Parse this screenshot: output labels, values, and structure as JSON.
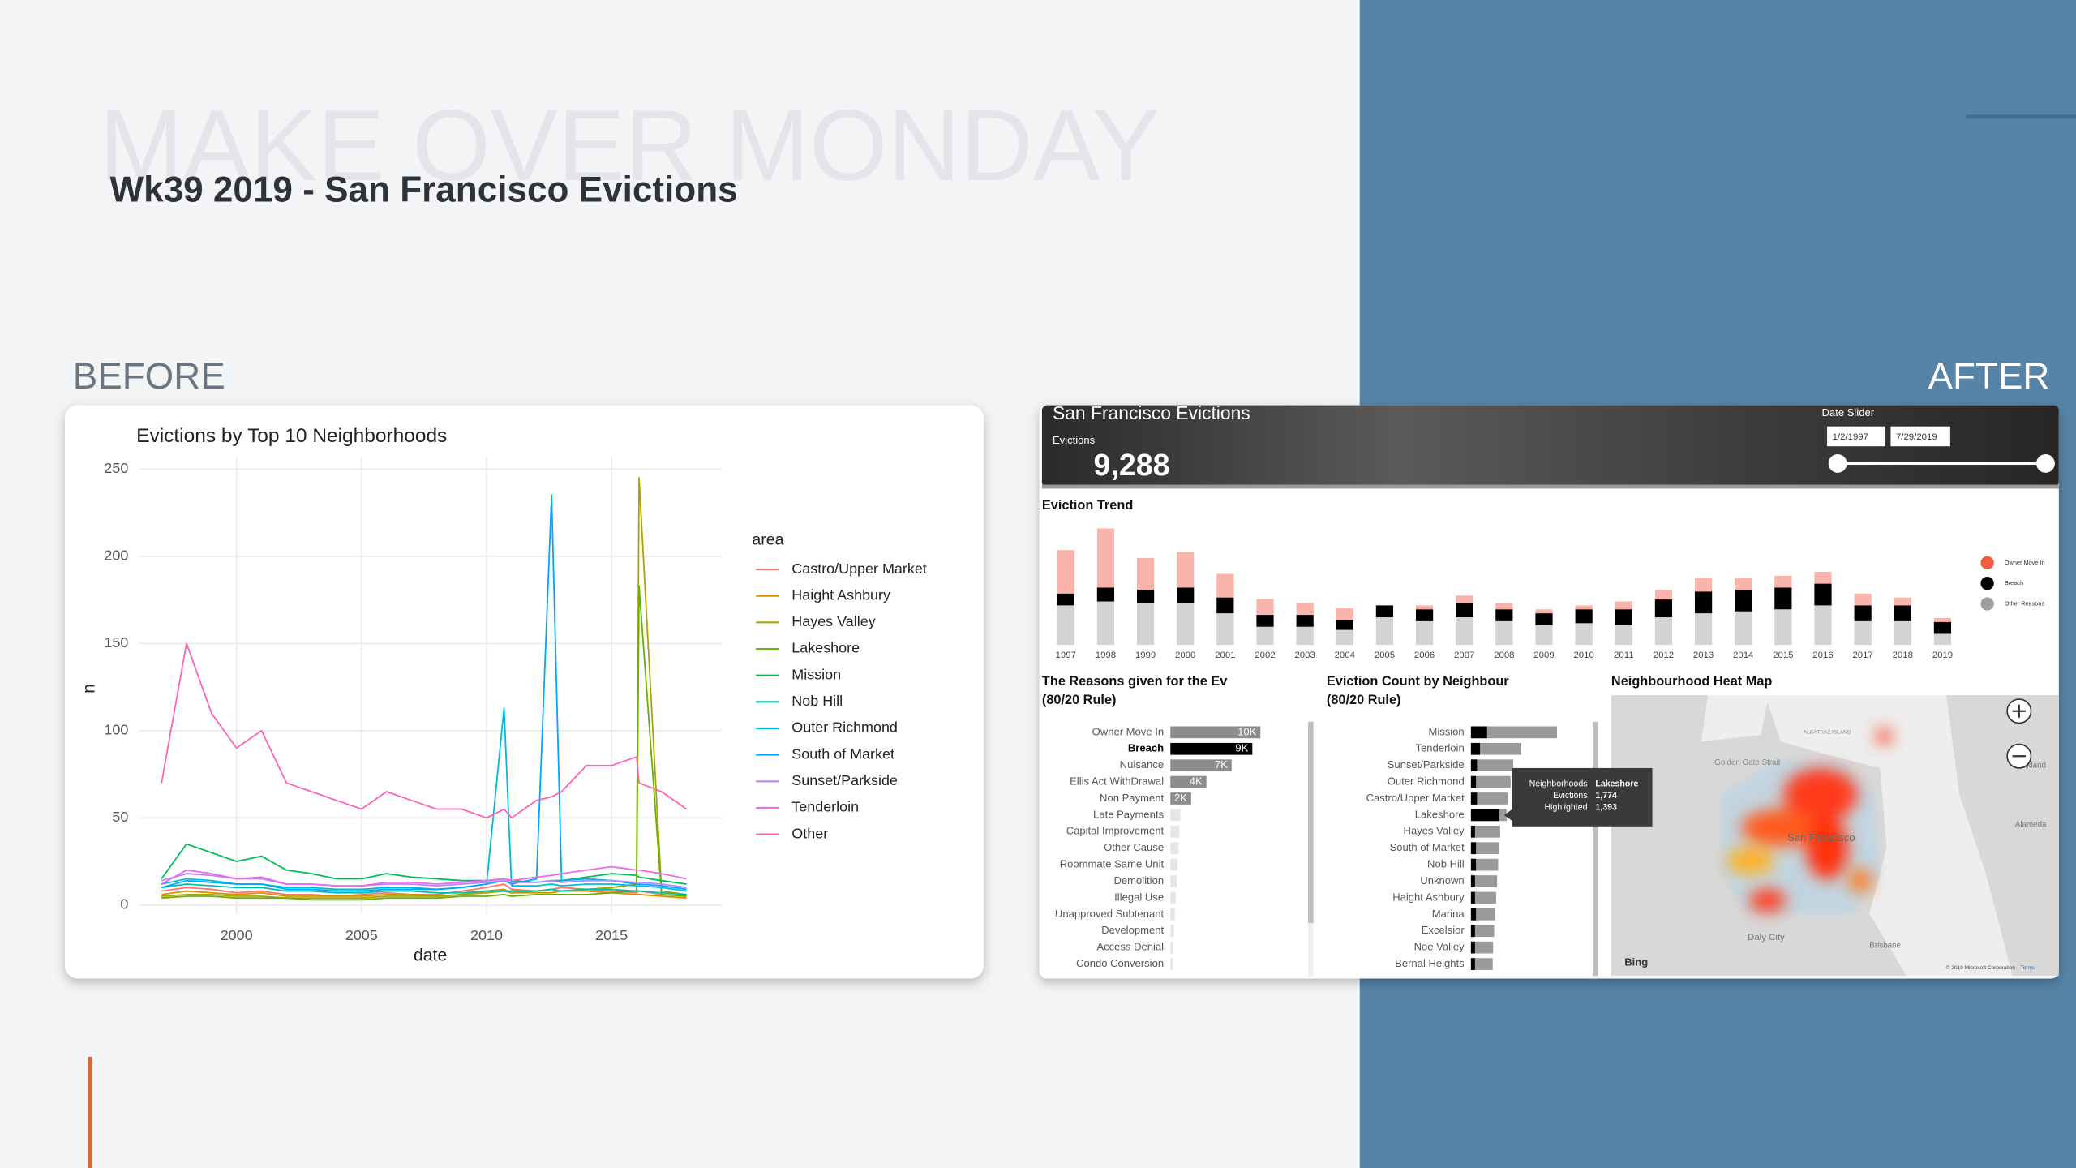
{
  "slide": {
    "watermark": "MAKE OVER MONDAY",
    "title": "Wk39 2019 - San Francisco Evictions",
    "before": "BEFORE",
    "after": "AFTER"
  },
  "dashboard": {
    "title": "San Francisco Evictions",
    "kpi_label": "Evictions",
    "kpi_value": "9,288",
    "slider_label": "Date Slider",
    "date_start": "1/2/1997",
    "date_end": "7/29/2019"
  },
  "map": {
    "title": "Neighbourhood Heat Map",
    "labels": [
      "San Francisco",
      "Daly City",
      "Brisbane",
      "Alameda",
      "Oakland",
      "Golden Gate Strait",
      "ALCATRAZ ISLAND"
    ],
    "provider": "Bing",
    "copyright": "© 2019 Microsoft Corporation",
    "terms": "Terms"
  },
  "chart_data": [
    {
      "type": "line",
      "title": "Evictions by Top 10 Neighborhoods",
      "x_label": "date",
      "y_label": "n",
      "legend_title": "area",
      "legend": "right",
      "grid": true,
      "x": [
        1997,
        1998,
        1999,
        2000,
        2001,
        2002,
        2003,
        2004,
        2005,
        2006,
        2007,
        2008,
        2009,
        2010,
        2010.7,
        2011,
        2012,
        2012.6,
        2013,
        2014,
        2015,
        2016,
        2016.1,
        2017,
        2018
      ],
      "xlim": [
        1996.1,
        2019.4
      ],
      "xticks": [
        2000,
        2005,
        2010,
        2015
      ],
      "ylim": [
        -5,
        257
      ],
      "yticks": [
        0,
        50,
        100,
        150,
        200,
        250
      ],
      "series": [
        {
          "name": "Castro/Upper Market",
          "color": "#F8766D",
          "values": [
            8,
            10,
            9,
            7,
            8,
            6,
            6,
            5,
            6,
            7,
            6,
            6,
            8,
            10,
            12,
            9,
            8,
            9,
            10,
            9,
            8,
            7,
            8,
            6,
            5
          ]
        },
        {
          "name": "Haight Ashbury",
          "color": "#DB8E00",
          "values": [
            6,
            8,
            7,
            6,
            7,
            5,
            5,
            5,
            5,
            6,
            6,
            5,
            6,
            8,
            9,
            7,
            7,
            7,
            8,
            8,
            7,
            6,
            6,
            5,
            4
          ]
        },
        {
          "name": "Hayes Valley",
          "color": "#AEA200",
          "values": [
            5,
            6,
            6,
            5,
            5,
            4,
            4,
            4,
            4,
            5,
            5,
            5,
            6,
            7,
            8,
            7,
            8,
            9,
            8,
            9,
            10,
            12,
            245,
            8,
            6
          ]
        },
        {
          "name": "Lakeshore",
          "color": "#64B200",
          "values": [
            4,
            5,
            5,
            4,
            4,
            4,
            3,
            3,
            3,
            4,
            4,
            4,
            5,
            5,
            6,
            5,
            6,
            6,
            6,
            6,
            7,
            8,
            183,
            6,
            5
          ]
        },
        {
          "name": "Mission",
          "color": "#00BD5C",
          "values": [
            15,
            35,
            30,
            25,
            28,
            20,
            18,
            15,
            15,
            18,
            16,
            15,
            14,
            14,
            15,
            14,
            13,
            14,
            14,
            16,
            18,
            17,
            16,
            14,
            12
          ]
        },
        {
          "name": "Nob Hill",
          "color": "#00C1A7",
          "values": [
            10,
            12,
            11,
            10,
            10,
            8,
            8,
            7,
            7,
            8,
            8,
            7,
            7,
            8,
            8,
            8,
            8,
            9,
            8,
            9,
            9,
            8,
            8,
            7,
            6
          ]
        },
        {
          "name": "Outer Richmond",
          "color": "#00BADE",
          "values": [
            12,
            15,
            14,
            12,
            12,
            10,
            10,
            9,
            9,
            10,
            10,
            9,
            10,
            12,
            113,
            11,
            11,
            12,
            11,
            12,
            12,
            11,
            11,
            10,
            8
          ]
        },
        {
          "name": "South of Market",
          "color": "#00A6FF",
          "values": [
            10,
            14,
            13,
            12,
            12,
            9,
            9,
            8,
            8,
            9,
            9,
            9,
            10,
            12,
            14,
            12,
            15,
            235,
            14,
            15,
            14,
            12,
            12,
            11,
            9
          ]
        },
        {
          "name": "Sunset/Parkside",
          "color": "#B385FF",
          "values": [
            14,
            18,
            17,
            15,
            15,
            12,
            12,
            11,
            11,
            12,
            12,
            11,
            12,
            13,
            14,
            13,
            13,
            14,
            13,
            14,
            14,
            13,
            13,
            12,
            10
          ]
        },
        {
          "name": "Tenderloin",
          "color": "#EF67EB",
          "values": [
            12,
            20,
            18,
            15,
            16,
            12,
            12,
            11,
            11,
            13,
            13,
            12,
            13,
            14,
            15,
            14,
            16,
            17,
            18,
            20,
            22,
            20,
            20,
            18,
            15
          ]
        },
        {
          "name": "Other",
          "color": "#FF63B6",
          "values": [
            70,
            150,
            110,
            90,
            100,
            70,
            65,
            60,
            55,
            65,
            60,
            55,
            55,
            50,
            55,
            50,
            60,
            62,
            65,
            80,
            80,
            85,
            70,
            65,
            55
          ]
        }
      ]
    },
    {
      "type": "bar",
      "stacked": true,
      "title": "Eviction Trend",
      "legend": "right",
      "highlighted": "Breach",
      "categories": [
        "1997",
        "1998",
        "1999",
        "2000",
        "2001",
        "2002",
        "2003",
        "2004",
        "2005",
        "2006",
        "2007",
        "2008",
        "2009",
        "2010",
        "2011",
        "2012",
        "2013",
        "2014",
        "2015",
        "2016",
        "2017",
        "2018",
        "2019"
      ],
      "series": [
        {
          "name": "Other Reasons",
          "color": "#9e9e9e",
          "values": [
            1000,
            1100,
            1050,
            1050,
            800,
            460,
            460,
            380,
            700,
            600,
            700,
            600,
            500,
            550,
            500,
            700,
            800,
            850,
            900,
            1000,
            600,
            600,
            280
          ]
        },
        {
          "name": "Breach",
          "color": "#000000",
          "values": [
            300,
            350,
            350,
            400,
            400,
            300,
            300,
            250,
            300,
            300,
            350,
            300,
            300,
            350,
            400,
            450,
            550,
            550,
            550,
            550,
            400,
            400,
            300
          ]
        },
        {
          "name": "Owner Move In",
          "color": "#f25c45",
          "values": [
            1100,
            1500,
            800,
            900,
            600,
            400,
            300,
            300,
            0,
            100,
            200,
            150,
            100,
            100,
            200,
            250,
            350,
            300,
            300,
            300,
            300,
            200,
            100
          ]
        }
      ]
    },
    {
      "type": "hbar",
      "title": "The Reasons given for the Ev",
      "subtitle": "(80/20 Rule)",
      "highlighted": "Breach",
      "categories": [
        "Owner Move In",
        "Breach",
        "Nuisance",
        "Ellis Act WithDrawal",
        "Non Payment",
        "Late Payments",
        "Capital Improvement",
        "Other Cause",
        "Roommate Same Unit",
        "Demolition",
        "Illegal Use",
        "Unapproved Subtenant",
        "Development",
        "Access Denial",
        "Condo Conversion"
      ],
      "values": [
        10000,
        9100,
        6800,
        4000,
        2300,
        1100,
        1000,
        900,
        800,
        700,
        600,
        500,
        400,
        300,
        250
      ],
      "value_labels": [
        "10K",
        "9K",
        "7K",
        "4K",
        "2K",
        null,
        null,
        null,
        null,
        null,
        null,
        null,
        null,
        null,
        null
      ],
      "colors": [
        "#8c8c8c",
        "#000000",
        "#8c8c8c",
        "#8c8c8c",
        "#8c8c8c",
        "#e6e6e6",
        "#e6e6e6",
        "#e6e6e6",
        "#e6e6e6",
        "#e6e6e6",
        "#e6e6e6",
        "#e6e6e6",
        "#e6e6e6",
        "#e6e6e6",
        "#e6e6e6"
      ]
    },
    {
      "type": "hbar_overlay",
      "title": "Eviction Count by Neighbour",
      "subtitle": "(80/20 Rule)",
      "tooltip_label": "Neighborhoods",
      "tooltip_index": 5,
      "categories": [
        "Mission",
        "Tenderloin",
        "Sunset/Parkside",
        "Outer Richmond",
        "Castro/Upper Market",
        "Lakeshore",
        "Hayes Valley",
        "South of Market",
        "Nob Hill",
        "Unknown",
        "Haight Ashbury",
        "Marina",
        "Excelsior",
        "Noe Valley",
        "Bernal Heights"
      ],
      "series": [
        {
          "name": "Evictions",
          "color": "#9a9a9a",
          "values": [
            4270,
            2500,
            2100,
            1970,
            1840,
            1774,
            1450,
            1380,
            1350,
            1300,
            1250,
            1200,
            1150,
            1100,
            1080
          ],
          "value_labels": [
            null,
            null,
            null,
            null,
            null,
            "1,774",
            null,
            null,
            null,
            null,
            null,
            null,
            null,
            null,
            null
          ]
        },
        {
          "name": "Highlighted",
          "color": "#000000",
          "values": [
            800,
            450,
            300,
            250,
            300,
            1393,
            200,
            250,
            250,
            200,
            200,
            250,
            200,
            200,
            200
          ],
          "value_labels": [
            null,
            null,
            null,
            null,
            null,
            "1,393",
            null,
            null,
            null,
            null,
            null,
            null,
            null,
            null,
            null
          ]
        }
      ]
    }
  ]
}
